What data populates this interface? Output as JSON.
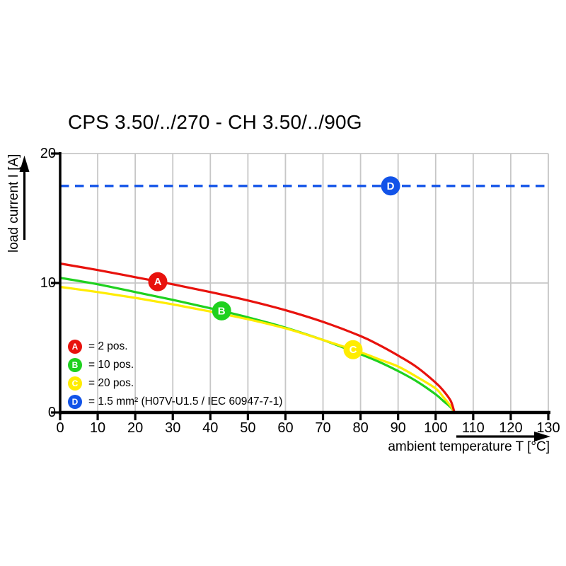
{
  "title": "CPS 3.50/../270 - CH 3.50/../90G",
  "axes": {
    "x": {
      "label": "ambient temperature T [°C]",
      "min": 0,
      "max": 130,
      "ticks": [
        0,
        10,
        20,
        30,
        40,
        50,
        60,
        70,
        80,
        90,
        100,
        110,
        120,
        130
      ]
    },
    "y": {
      "label": "load current I [A]",
      "min": 0,
      "max": 20,
      "ticks": [
        0,
        10,
        20
      ]
    }
  },
  "colors": {
    "A": "#e8120d",
    "B": "#1fd11f",
    "C": "#ffec00",
    "D": "#1253e8",
    "grid": "#c7c7c7",
    "axis": "#000000",
    "marker_text": "#ffffff"
  },
  "chart_data": {
    "type": "line",
    "title": "CPS 3.50/../270 - CH 3.50/../90G",
    "xlabel": "ambient temperature T [°C]",
    "ylabel": "load current I [A]",
    "xlim": [
      0,
      130
    ],
    "ylim": [
      0,
      20
    ],
    "grid": true,
    "series": [
      {
        "id": "A",
        "legend": "2 pos.",
        "style": "solid",
        "color_key": "A",
        "points": [
          [
            0,
            11.5
          ],
          [
            10,
            11.0
          ],
          [
            20,
            10.45
          ],
          [
            30,
            9.9
          ],
          [
            40,
            9.3
          ],
          [
            50,
            8.65
          ],
          [
            60,
            7.9
          ],
          [
            70,
            7.0
          ],
          [
            80,
            5.9
          ],
          [
            85,
            5.2
          ],
          [
            90,
            4.4
          ],
          [
            95,
            3.5
          ],
          [
            100,
            2.3
          ],
          [
            102,
            1.7
          ],
          [
            104,
            0.9
          ],
          [
            105,
            0
          ]
        ]
      },
      {
        "id": "B",
        "legend": "10 pos.",
        "style": "solid",
        "color_key": "B",
        "points": [
          [
            0,
            10.4
          ],
          [
            10,
            9.9
          ],
          [
            20,
            9.3
          ],
          [
            30,
            8.7
          ],
          [
            40,
            8.05
          ],
          [
            50,
            7.35
          ],
          [
            60,
            6.55
          ],
          [
            70,
            5.6
          ],
          [
            80,
            4.5
          ],
          [
            85,
            3.9
          ],
          [
            90,
            3.2
          ],
          [
            95,
            2.4
          ],
          [
            100,
            1.4
          ],
          [
            102,
            0.9
          ],
          [
            104,
            0.4
          ],
          [
            105,
            0
          ]
        ]
      },
      {
        "id": "C",
        "legend": "20 pos.",
        "style": "solid",
        "color_key": "C",
        "points": [
          [
            0,
            9.7
          ],
          [
            10,
            9.3
          ],
          [
            20,
            8.85
          ],
          [
            30,
            8.35
          ],
          [
            40,
            7.8
          ],
          [
            50,
            7.2
          ],
          [
            60,
            6.5
          ],
          [
            70,
            5.6
          ],
          [
            80,
            4.65
          ],
          [
            85,
            4.1
          ],
          [
            90,
            3.55
          ],
          [
            95,
            2.75
          ],
          [
            100,
            1.85
          ],
          [
            102,
            1.2
          ],
          [
            104,
            0.5
          ],
          [
            105,
            0
          ]
        ]
      },
      {
        "id": "D",
        "legend": "1.5 mm² (H07V-U1.5 / IEC 60947-7-1)",
        "style": "dashed",
        "color_key": "D",
        "points": [
          [
            0,
            17.5
          ],
          [
            130,
            17.5
          ]
        ]
      }
    ],
    "markers": [
      {
        "series": "A",
        "x": 26,
        "y": 10.1
      },
      {
        "series": "B",
        "x": 43,
        "y": 7.85
      },
      {
        "series": "C",
        "x": 78,
        "y": 4.85
      },
      {
        "series": "D",
        "x": 88,
        "y": 17.5
      }
    ]
  },
  "legend": {
    "items": [
      {
        "marker": "A",
        "text": "= 2 pos."
      },
      {
        "marker": "B",
        "text": "= 10 pos."
      },
      {
        "marker": "C",
        "text": "= 20 pos."
      },
      {
        "marker": "D",
        "text": "= 1.5 mm² (H07V-U1.5 / IEC 60947-7-1)"
      }
    ]
  }
}
